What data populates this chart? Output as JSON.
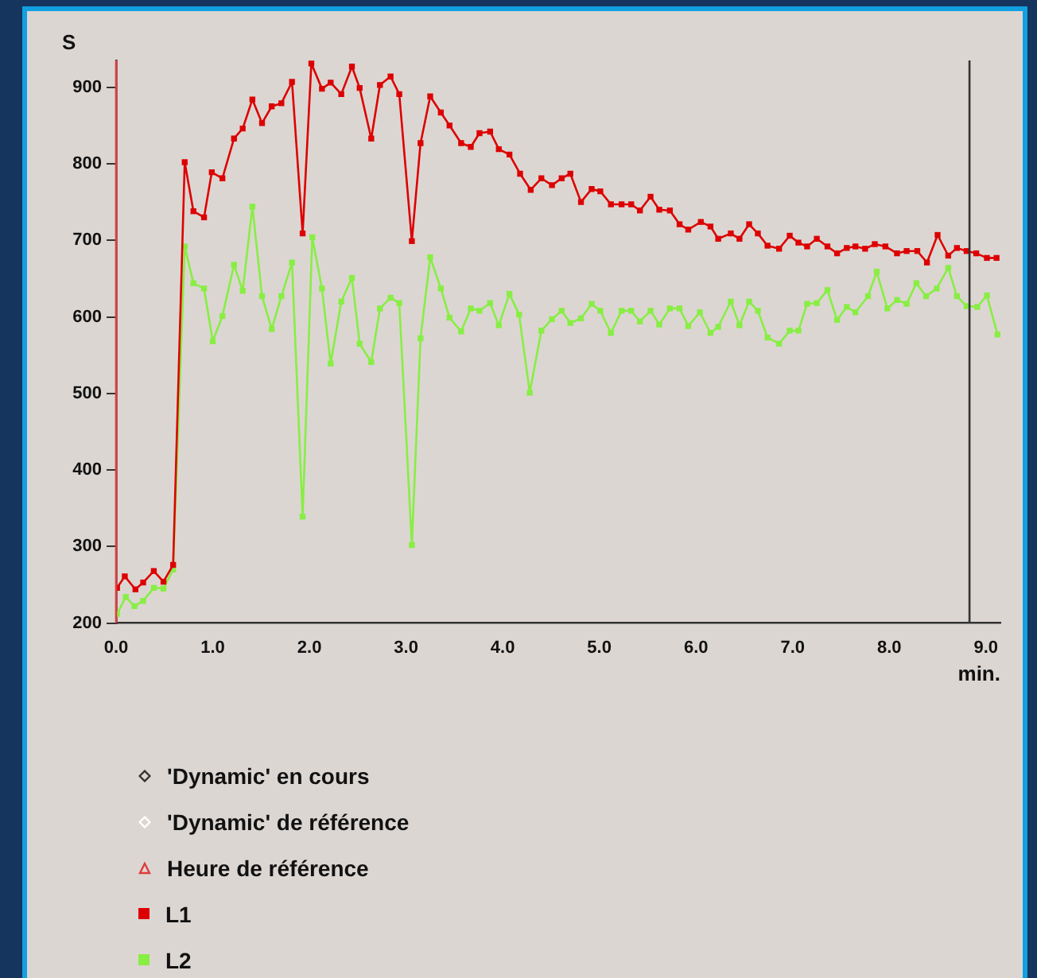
{
  "chart_data": {
    "type": "line",
    "xlabel": "min.",
    "ylabel": "S",
    "marker": "square",
    "line_style": "solid",
    "grid": false,
    "legend": "bottom left",
    "xlim": [
      0,
      9.15
    ],
    "ylim": [
      200,
      935
    ],
    "xticks": [
      {
        "value": 0,
        "label": "0.0"
      },
      {
        "value": 1,
        "label": "1.0"
      },
      {
        "value": 2,
        "label": "2.0"
      },
      {
        "value": 3,
        "label": "3.0"
      },
      {
        "value": 4,
        "label": "4.0"
      },
      {
        "value": 5,
        "label": "5.0"
      },
      {
        "value": 6,
        "label": "6.0"
      },
      {
        "value": 7,
        "label": "7.0"
      },
      {
        "value": 8,
        "label": "8.0"
      },
      {
        "value": 9,
        "label": "9.0"
      }
    ],
    "yticks": [
      200,
      300,
      400,
      500,
      600,
      700,
      800,
      900
    ],
    "ref_lines": [
      {
        "axis": "x",
        "value": 8.83,
        "label": "'Dynamic' en cours",
        "color": "#333333"
      },
      {
        "axis": "x",
        "value": 0,
        "label": "Heure de référence",
        "color": "#e03c3c"
      }
    ],
    "annotations": [
      "'Dynamic' de référence"
    ],
    "series": [
      {
        "name": "L1",
        "color": "#dd0000",
        "x": [
          0.01,
          0.09,
          0.2,
          0.28,
          0.39,
          0.49,
          0.59,
          0.71,
          0.8,
          0.91,
          0.99,
          1.1,
          1.22,
          1.31,
          1.41,
          1.51,
          1.61,
          1.71,
          1.82,
          1.93,
          2.02,
          2.13,
          2.22,
          2.33,
          2.44,
          2.52,
          2.64,
          2.73,
          2.84,
          2.93,
          3.06,
          3.15,
          3.25,
          3.36,
          3.45,
          3.57,
          3.67,
          3.76,
          3.87,
          3.96,
          4.07,
          4.18,
          4.29,
          4.4,
          4.51,
          4.61,
          4.7,
          4.81,
          4.92,
          5.01,
          5.12,
          5.23,
          5.33,
          5.42,
          5.53,
          5.62,
          5.73,
          5.83,
          5.92,
          6.05,
          6.15,
          6.23,
          6.36,
          6.45,
          6.55,
          6.64,
          6.74,
          6.86,
          6.97,
          7.06,
          7.15,
          7.25,
          7.36,
          7.46,
          7.56,
          7.65,
          7.75,
          7.85,
          7.96,
          8.08,
          8.18,
          8.29,
          8.39,
          8.5,
          8.61,
          8.7,
          8.8,
          8.9,
          9.01,
          9.11
        ],
        "values": [
          246,
          261,
          244,
          253,
          268,
          254,
          276,
          802,
          738,
          730,
          789,
          781,
          833,
          846,
          884,
          853,
          875,
          879,
          907,
          709,
          931,
          898,
          906,
          891,
          927,
          899,
          833,
          903,
          914,
          891,
          699,
          827,
          888,
          867,
          850,
          827,
          822,
          840,
          842,
          819,
          812,
          787,
          766,
          781,
          772,
          781,
          787,
          750,
          767,
          764,
          747,
          747,
          747,
          739,
          757,
          740,
          739,
          721,
          714,
          724,
          718,
          702,
          709,
          702,
          721,
          709,
          693,
          689,
          706,
          697,
          692,
          702,
          692,
          683,
          690,
          692,
          689,
          695,
          692,
          683,
          686,
          686,
          671,
          707,
          680,
          690,
          686,
          683,
          677,
          677
        ]
      },
      {
        "name": "L2",
        "color": "#88ee44",
        "x": [
          0.01,
          0.1,
          0.19,
          0.28,
          0.39,
          0.49,
          0.59,
          0.71,
          0.8,
          0.91,
          1.0,
          1.1,
          1.22,
          1.31,
          1.41,
          1.51,
          1.61,
          1.71,
          1.82,
          1.93,
          2.03,
          2.13,
          2.22,
          2.33,
          2.44,
          2.52,
          2.64,
          2.73,
          2.84,
          2.93,
          3.06,
          3.15,
          3.25,
          3.36,
          3.45,
          3.57,
          3.67,
          3.76,
          3.87,
          3.96,
          4.07,
          4.17,
          4.28,
          4.4,
          4.51,
          4.61,
          4.7,
          4.81,
          4.92,
          5.01,
          5.12,
          5.23,
          5.33,
          5.42,
          5.53,
          5.62,
          5.73,
          5.83,
          5.92,
          6.04,
          6.15,
          6.23,
          6.36,
          6.45,
          6.55,
          6.64,
          6.74,
          6.86,
          6.97,
          7.06,
          7.15,
          7.25,
          7.36,
          7.46,
          7.56,
          7.65,
          7.78,
          7.87,
          7.98,
          8.08,
          8.18,
          8.28,
          8.38,
          8.49,
          8.61,
          8.7,
          8.8,
          8.91,
          9.01,
          9.12
        ],
        "values": [
          212,
          234,
          222,
          229,
          246,
          245,
          270,
          692,
          644,
          637,
          568,
          601,
          668,
          634,
          744,
          627,
          584,
          627,
          671,
          339,
          704,
          637,
          539,
          620,
          651,
          565,
          541,
          611,
          625,
          618,
          302,
          572,
          678,
          637,
          599,
          581,
          611,
          608,
          618,
          589,
          630,
          603,
          501,
          582,
          597,
          608,
          592,
          598,
          617,
          608,
          579,
          608,
          608,
          594,
          608,
          590,
          611,
          611,
          588,
          606,
          579,
          587,
          620,
          589,
          620,
          608,
          573,
          565,
          582,
          582,
          617,
          618,
          635,
          596,
          613,
          606,
          627,
          659,
          611,
          622,
          617,
          644,
          627,
          637,
          664,
          627,
          614,
          613,
          628,
          577
        ]
      }
    ]
  }
}
